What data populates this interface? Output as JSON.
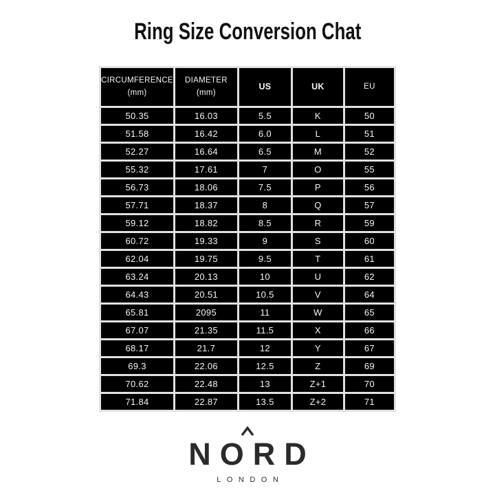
{
  "title": "Ring Size Conversion Chat",
  "table": {
    "headers": [
      {
        "title": "CIRCUMFERENCE",
        "subtitle": "(mm)",
        "bold": false
      },
      {
        "title": "DIAMETER",
        "subtitle": "(mm)",
        "bold": false
      },
      {
        "title": "US",
        "subtitle": "",
        "bold": true
      },
      {
        "title": "UK",
        "subtitle": "",
        "bold": true
      },
      {
        "title": "EU",
        "subtitle": "",
        "bold": false
      }
    ],
    "rows": [
      [
        "50.35",
        "16.03",
        "5.5",
        "K",
        "50"
      ],
      [
        "51.58",
        "16.42",
        "6.0",
        "L",
        "51"
      ],
      [
        "52.27",
        "16.64",
        "6.5",
        "M",
        "52"
      ],
      [
        "55.32",
        "17.61",
        "7",
        "O",
        "55"
      ],
      [
        "56.73",
        "18.06",
        "7.5",
        "P",
        "56"
      ],
      [
        "57.71",
        "18.37",
        "8",
        "Q",
        "57"
      ],
      [
        "59.12",
        "18.82",
        "8.5",
        "R",
        "59"
      ],
      [
        "60.72",
        "19.33",
        "9",
        "S",
        "60"
      ],
      [
        "62.04",
        "19.75",
        "9.5",
        "T",
        "61"
      ],
      [
        "63.24",
        "20.13",
        "10",
        "U",
        "62"
      ],
      [
        "64.43",
        "20.51",
        "10.5",
        "V",
        "64"
      ],
      [
        "65.81",
        "2095",
        "11",
        "W",
        "65"
      ],
      [
        "67.07",
        "21.35",
        "11.5",
        "X",
        "66"
      ],
      [
        "68.17",
        "21.7",
        "12",
        "Y",
        "67"
      ],
      [
        "69.3",
        "22.06",
        "12.5",
        "Z",
        "69"
      ],
      [
        "70.62",
        "22.48",
        "13",
        "Z+1",
        "70"
      ],
      [
        "71.84",
        "22.87",
        "13.5",
        "Z+2",
        "71"
      ]
    ]
  },
  "logo": {
    "brand": "NORD",
    "city": "LONDON",
    "caret_icon": "chevron-up-icon"
  },
  "colors": {
    "cell_background": "#000000",
    "cell_text": "#f6f6f6",
    "grid_gap": "#e2e2e2",
    "title_text": "#111111",
    "logo_color": "#2b2b2b",
    "page_background": "#ffffff"
  }
}
